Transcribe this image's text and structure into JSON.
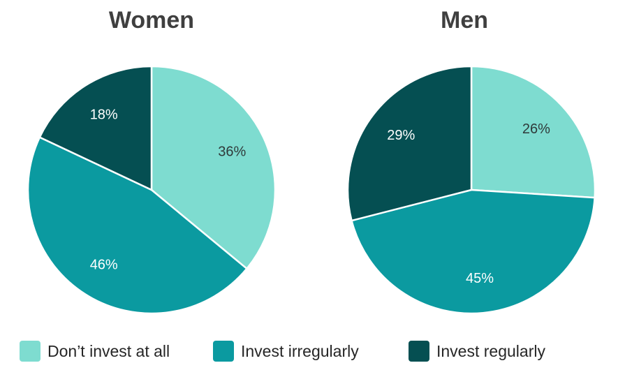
{
  "chart_data": [
    {
      "type": "pie",
      "title": "Women",
      "categories": [
        "Don’t invest at all",
        "Invest irregularly",
        "Invest regularly"
      ],
      "values": [
        36,
        46,
        18
      ],
      "value_labels": [
        "36%",
        "46%",
        "18%"
      ],
      "legend": "bottom"
    },
    {
      "type": "pie",
      "title": "Men",
      "categories": [
        "Don’t invest at all",
        "Invest irregularly",
        "Invest regularly"
      ],
      "values": [
        26,
        45,
        29
      ],
      "value_labels": [
        "26%",
        "45%",
        "29%"
      ],
      "legend": "bottom"
    }
  ],
  "legend": {
    "items": [
      {
        "label": "Don’t invest at all",
        "color": "#7edcd0"
      },
      {
        "label": "Invest irregularly",
        "color": "#0b9aa0"
      },
      {
        "label": "Invest regularly",
        "color": "#054f52"
      }
    ]
  },
  "colors": {
    "slices": [
      "#7edcd0",
      "#0b9aa0",
      "#054f52"
    ],
    "label_text": [
      "#2f3a3a",
      "#ffffff",
      "#ffffff"
    ]
  }
}
